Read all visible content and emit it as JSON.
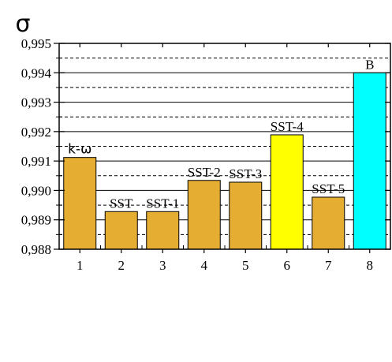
{
  "chart_data": {
    "type": "bar",
    "ylabel": "σ",
    "categories": [
      "1",
      "2",
      "3",
      "4",
      "5",
      "6",
      "7",
      "8"
    ],
    "values": [
      0.99112,
      0.98928,
      0.98928,
      0.99034,
      0.99028,
      0.99189,
      0.98977,
      0.994
    ],
    "bar_labels": [
      "k-ω",
      "SST",
      "SST-1",
      "SST-2",
      "SST-3",
      "SST-4",
      "SST-5",
      "B"
    ],
    "bar_colors": [
      "#E5AE33",
      "#E5AE33",
      "#E5AE33",
      "#E5AE33",
      "#E5AE33",
      "#FFFF00",
      "#E5AE33",
      "#00FFFF"
    ],
    "ylim": [
      0.988,
      0.995
    ],
    "yticks": [
      "0,988",
      "0,989",
      "0,990",
      "0,991",
      "0,992",
      "0,993",
      "0,994",
      "0,995"
    ],
    "grid": "solid major, dashed minor",
    "legend": "none"
  }
}
